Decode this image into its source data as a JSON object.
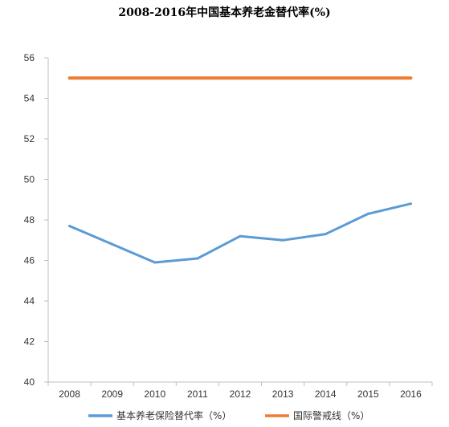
{
  "chart_data": {
    "type": "line",
    "title": "2008-2016年中国基本养老金替代率(%)",
    "xlabel": "",
    "ylabel": "",
    "categories": [
      "2008",
      "2009",
      "2010",
      "2011",
      "2012",
      "2013",
      "2014",
      "2015",
      "2016"
    ],
    "ylim": [
      40,
      56
    ],
    "yticks": [
      "40",
      "42",
      "44",
      "46",
      "48",
      "50",
      "52",
      "54",
      "56"
    ],
    "grid": false,
    "legend_position": "bottom",
    "series": [
      {
        "name": "基本养老保险替代率（%）",
        "color": "#5b9bd5",
        "values": [
          47.7,
          46.8,
          45.9,
          46.1,
          47.2,
          47.0,
          47.3,
          48.3,
          48.8
        ]
      },
      {
        "name": "国际警戒线（%）",
        "color": "#ed7d31",
        "values": [
          55,
          55,
          55,
          55,
          55,
          55,
          55,
          55,
          55
        ]
      }
    ]
  }
}
